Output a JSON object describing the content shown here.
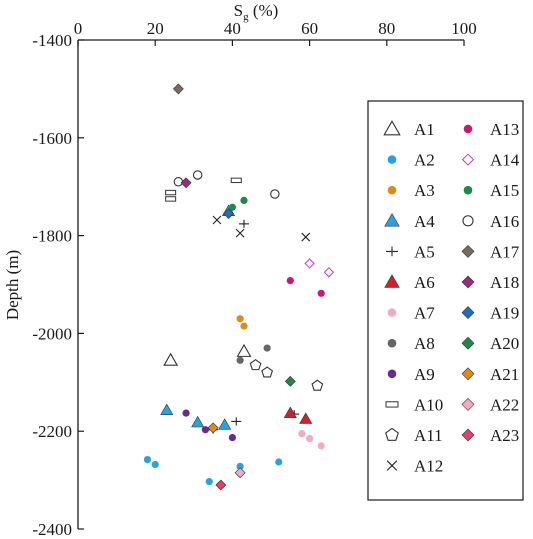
{
  "chart_data": {
    "type": "scatter",
    "x_axis": {
      "label_main": "S",
      "label_sub": "g",
      "label_suffix": " (%)",
      "range": [
        0,
        100
      ],
      "ticks": [
        0,
        20,
        40,
        60,
        80,
        100
      ],
      "tick_labels": [
        "0",
        "20",
        "40",
        "60",
        "80",
        "100"
      ],
      "position": "top"
    },
    "y_axis": {
      "label": "Depth (m)",
      "range": [
        -2400,
        -1400
      ],
      "ticks": [
        -1400,
        -1600,
        -1800,
        -2000,
        -2200,
        -2400
      ],
      "tick_labels": [
        "-1400",
        "-1600",
        "-1800",
        "-2000",
        "-2200",
        "-2400"
      ]
    },
    "legend_placement": "right",
    "series": [
      {
        "name": "A1",
        "marker": "triangle-open",
        "color": "#333333",
        "points": [
          [
            24,
            -2055
          ],
          [
            43,
            -2037
          ]
        ]
      },
      {
        "name": "A2",
        "marker": "circle",
        "color": "#29a3e0",
        "points": [
          [
            18,
            -2258
          ],
          [
            20,
            -2268
          ],
          [
            34,
            -2303
          ],
          [
            42,
            -2272
          ],
          [
            52,
            -2263
          ]
        ]
      },
      {
        "name": "A3",
        "marker": "circle",
        "color": "#e08a1e",
        "points": [
          [
            42,
            -1970
          ],
          [
            43,
            -1985
          ]
        ]
      },
      {
        "name": "A4",
        "marker": "triangle",
        "color": "#29a3e0",
        "points": [
          [
            23,
            -2157
          ],
          [
            31,
            -2182
          ],
          [
            38,
            -2187
          ],
          [
            39,
            -1750
          ]
        ]
      },
      {
        "name": "A5",
        "marker": "plus",
        "color": "#222222",
        "points": [
          [
            35,
            -2197
          ],
          [
            41,
            -2180
          ],
          [
            43,
            -1776
          ],
          [
            56,
            -2165
          ]
        ]
      },
      {
        "name": "A6",
        "marker": "triangle",
        "color": "#d0202e",
        "points": [
          [
            55,
            -2163
          ],
          [
            59,
            -2175
          ]
        ]
      },
      {
        "name": "A7",
        "marker": "circle",
        "color": "#f4aac0",
        "points": [
          [
            58,
            -2205
          ],
          [
            60,
            -2215
          ],
          [
            63,
            -2230
          ]
        ]
      },
      {
        "name": "A8",
        "marker": "circle",
        "color": "#666666",
        "points": [
          [
            42,
            -2055
          ],
          [
            49,
            -2030
          ]
        ]
      },
      {
        "name": "A9",
        "marker": "circle",
        "color": "#6a2a8c",
        "points": [
          [
            28,
            -2163
          ],
          [
            33,
            -2197
          ],
          [
            40,
            -2213
          ]
        ]
      },
      {
        "name": "A10",
        "marker": "rect-open",
        "color": "#333333",
        "points": [
          [
            24,
            -1712
          ],
          [
            24,
            -1725
          ],
          [
            41,
            -1687
          ]
        ]
      },
      {
        "name": "A11",
        "marker": "pentagon-open",
        "color": "#333333",
        "points": [
          [
            46,
            -2065
          ],
          [
            49,
            -2080
          ],
          [
            62,
            -2107
          ]
        ]
      },
      {
        "name": "A12",
        "marker": "x",
        "color": "#222222",
        "points": [
          [
            36,
            -1768
          ],
          [
            42,
            -1795
          ],
          [
            59,
            -1803
          ]
        ]
      },
      {
        "name": "A13",
        "marker": "circle",
        "color": "#c8187a",
        "points": [
          [
            55,
            -1892
          ],
          [
            63,
            -1918
          ]
        ]
      },
      {
        "name": "A14",
        "marker": "diamond-open",
        "color": "#c040c0",
        "points": [
          [
            60,
            -1857
          ],
          [
            65,
            -1875
          ]
        ]
      },
      {
        "name": "A15",
        "marker": "circle",
        "color": "#1e8a46",
        "points": [
          [
            40,
            -1742
          ],
          [
            43,
            -1728
          ]
        ]
      },
      {
        "name": "A16",
        "marker": "circle-open",
        "color": "#333333",
        "points": [
          [
            26,
            -1690
          ],
          [
            31,
            -1676
          ],
          [
            51,
            -1715
          ]
        ]
      },
      {
        "name": "A17",
        "marker": "diamond",
        "color": "#7a6a5c",
        "points": [
          [
            26,
            -1500
          ]
        ]
      },
      {
        "name": "A18",
        "marker": "diamond",
        "color": "#a0287a",
        "points": [
          [
            28,
            -1692
          ]
        ]
      },
      {
        "name": "A19",
        "marker": "diamond",
        "color": "#1e6eb8",
        "points": [
          [
            39,
            -1755
          ]
        ]
      },
      {
        "name": "A20",
        "marker": "diamond",
        "color": "#1e8a46",
        "points": [
          [
            55,
            -2098
          ]
        ]
      },
      {
        "name": "A21",
        "marker": "diamond",
        "color": "#e08a1e",
        "points": [
          [
            35,
            -2193
          ]
        ]
      },
      {
        "name": "A22",
        "marker": "diamond",
        "color": "#f4aac0",
        "points": [
          [
            42,
            -2285
          ]
        ]
      },
      {
        "name": "A23",
        "marker": "diamond",
        "color": "#e0406a",
        "points": [
          [
            37,
            -2310
          ]
        ]
      }
    ]
  }
}
